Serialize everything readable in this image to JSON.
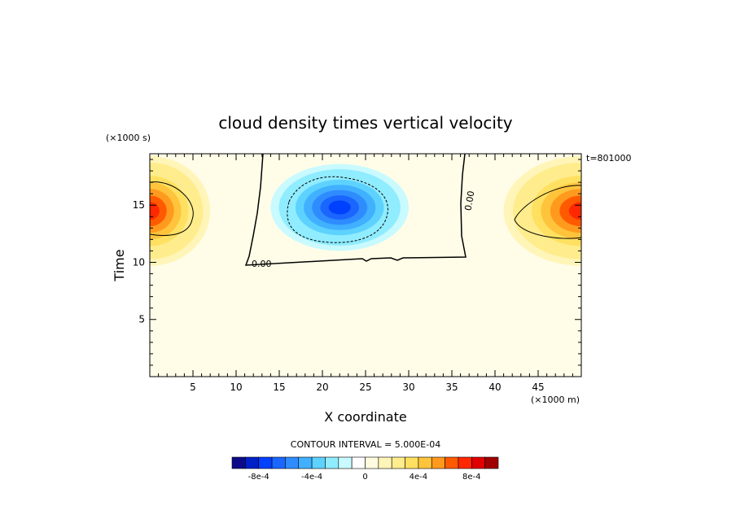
{
  "chart_data": {
    "type": "heatmap",
    "title": "cloud density times vertical velocity",
    "xlabel": "X coordinate",
    "ylabel": "Time",
    "x_unit": "(×1000 m)",
    "y_unit": "(×1000 s)",
    "time_label": "t=801000",
    "contour_interval_label": "CONTOUR INTERVAL = 5.000E-04",
    "xlim": [
      0,
      50
    ],
    "ylim": [
      0,
      19.5
    ],
    "x_ticks": [
      5,
      10,
      15,
      20,
      25,
      30,
      35,
      40,
      45
    ],
    "y_ticks": [
      5,
      10,
      15
    ],
    "contour_label": "0.00",
    "fields": [
      {
        "name": "updraft-left",
        "x": 0,
        "y": 14.5,
        "rx": 7,
        "ry": 4.8,
        "peak": 0.0009
      },
      {
        "name": "updraft-right",
        "x": 50,
        "y": 14.5,
        "rx": 9,
        "ry": 4.8,
        "peak": 0.0009
      },
      {
        "name": "downdraft-center",
        "x": 22,
        "y": 14.8,
        "rx": 8,
        "ry": 3.8,
        "peak": -0.0009
      }
    ],
    "colorbar": {
      "colors": [
        "#0b0b8a",
        "#0020c8",
        "#0040ff",
        "#1a66ff",
        "#2f8cff",
        "#40b0ff",
        "#5ed2ff",
        "#90ecff",
        "#c8faff",
        "#ffffff",
        "#fffbe0",
        "#fff5b8",
        "#ffec8c",
        "#ffe060",
        "#ffc43c",
        "#ff9a1e",
        "#ff5a00",
        "#ff2800",
        "#e00000",
        "#a00000"
      ],
      "tick_labels": [
        "-8e-4",
        "-4e-4",
        "0",
        "4e-4",
        "8e-4"
      ],
      "tick_values": [
        -0.0008,
        -0.0004,
        0,
        0.0004,
        0.0008
      ],
      "range": [
        -0.001,
        0.001
      ]
    }
  }
}
